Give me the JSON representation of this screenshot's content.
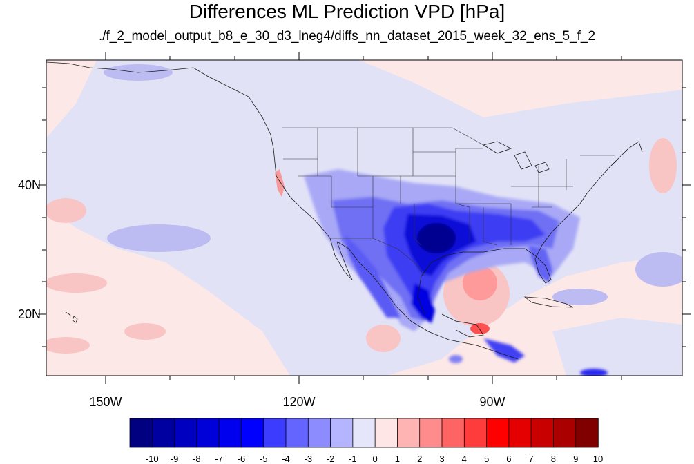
{
  "title": "Differences ML Prediction VPD [hPa]",
  "subtitle": "./f_2_model_output_b8_e_30_d3_lneg4/diffs_nn_dataset_2015_week_32_ens_5_f_2",
  "lat_labels": [
    "40N",
    "20N"
  ],
  "lon_labels": [
    "150W",
    "120W",
    "90W"
  ],
  "colorbar": {
    "ticks": [
      "-10",
      "-9",
      "-8",
      "-7",
      "-6",
      "-5",
      "-4",
      "-3",
      "-2",
      "-1",
      "0",
      "1",
      "2",
      "3",
      "4",
      "5",
      "6",
      "7",
      "8",
      "9",
      "10"
    ],
    "colors": [
      "#000080",
      "#0000a0",
      "#0000c0",
      "#0000d8",
      "#0000ee",
      "#0000ff",
      "#3c3cff",
      "#6464ff",
      "#8c8cff",
      "#b4b4ff",
      "#e6e6fa",
      "#ffe6e6",
      "#ffb4b4",
      "#ff8c8c",
      "#ff6464",
      "#ff3c3c",
      "#ff0000",
      "#e40000",
      "#c80000",
      "#aa0000",
      "#800000"
    ]
  },
  "map": {
    "background_color": "#fde8e8",
    "features": [
      "coastlines",
      "us-state-borders",
      "country-borders"
    ]
  }
}
